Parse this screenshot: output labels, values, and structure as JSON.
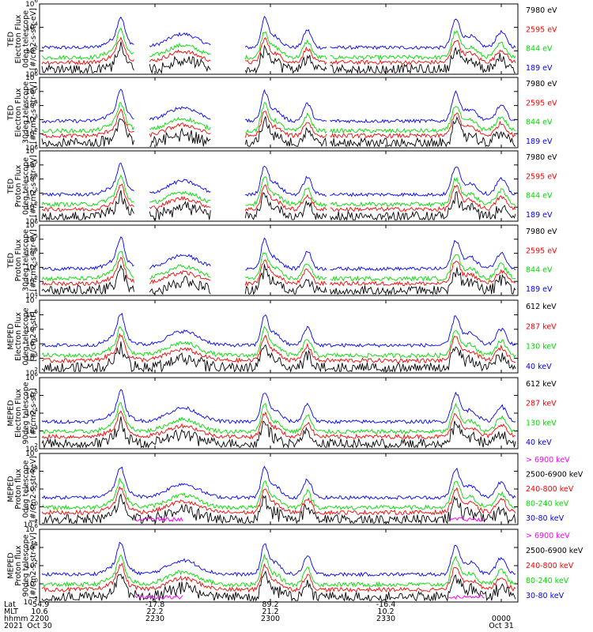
{
  "colors": {
    "black": "#000000",
    "blue": "#0000ff",
    "red": "#ff0000",
    "green": "#00dd00",
    "magenta": "#ff00ff"
  },
  "x_axis": {
    "row_labels": [
      "Lat",
      "MLT",
      "hhmm",
      "2021"
    ],
    "ticks": [
      {
        "time": "2200",
        "lat": "-54.9",
        "mlt": "10.6",
        "date": "Oct 30"
      },
      {
        "time": "2230",
        "lat": "-17.8",
        "mlt": "22.2",
        "date": ""
      },
      {
        "time": "2300",
        "lat": "89.2",
        "mlt": "21.2",
        "date": ""
      },
      {
        "time": "2330",
        "lat": "-16.4",
        "mlt": "10.2",
        "date": ""
      },
      {
        "time": "0000",
        "lat": "",
        "mlt": "",
        "date": "Oct 31"
      }
    ]
  },
  "chart_data": [
    {
      "type": "line",
      "scale": "log",
      "title_lines": [
        "TED",
        "Electron Flux",
        "0deg telescope",
        "[#/cm2-s-str-eV]"
      ],
      "y_ticks": [
        {
          "label": "10",
          "exp": "0"
        },
        {
          "label": "10",
          "exp": "2"
        },
        {
          "label": "10",
          "exp": "4"
        },
        {
          "label": "10",
          "exp": "6"
        }
      ],
      "ylim_exp": [
        0,
        6
      ],
      "series": [
        {
          "name": "7980 eV",
          "color": "black"
        },
        {
          "name": "2595 eV",
          "color": "red"
        },
        {
          "name": "844 eV",
          "color": "green"
        },
        {
          "name": "189 eV",
          "color": "blue"
        }
      ]
    },
    {
      "type": "line",
      "scale": "log",
      "title_lines": [
        "TED",
        "Electron Flux",
        "30deg telescope",
        "[#/cm2-s-str-eV]"
      ],
      "y_ticks": [
        {
          "label": "10",
          "exp": "1"
        },
        {
          "label": "10",
          "exp": "2"
        },
        {
          "label": "10",
          "exp": "3"
        },
        {
          "label": "10",
          "exp": "4"
        },
        {
          "label": "10",
          "exp": "5"
        },
        {
          "label": "10",
          "exp": "6"
        }
      ],
      "ylim_exp": [
        1,
        6
      ],
      "series": [
        {
          "name": "7980 eV",
          "color": "black"
        },
        {
          "name": "2595 eV",
          "color": "red"
        },
        {
          "name": "844 eV",
          "color": "green"
        },
        {
          "name": "189 eV",
          "color": "blue"
        }
      ]
    },
    {
      "type": "line",
      "scale": "log",
      "title_lines": [
        "TED",
        "Proton Flux",
        "0deg telescope",
        "[#/cm2-s-str-eV]"
      ],
      "y_ticks": [
        {
          "label": "10",
          "exp": "1"
        },
        {
          "label": "10",
          "exp": "2"
        },
        {
          "label": "10",
          "exp": "3"
        },
        {
          "label": "10",
          "exp": "4"
        },
        {
          "label": "10",
          "exp": "5"
        },
        {
          "label": "10",
          "exp": "6"
        }
      ],
      "ylim_exp": [
        1,
        6
      ],
      "series": [
        {
          "name": "7980 eV",
          "color": "black"
        },
        {
          "name": "2595 eV",
          "color": "red"
        },
        {
          "name": "844 eV",
          "color": "green"
        },
        {
          "name": "189 eV",
          "color": "blue"
        }
      ]
    },
    {
      "type": "line",
      "scale": "log",
      "title_lines": [
        "TED",
        "Proton Flux",
        "30deg telescope",
        "[#/cm2-s-str-eV]"
      ],
      "y_ticks": [
        {
          "label": "10",
          "exp": "1"
        },
        {
          "label": "10",
          "exp": "2"
        },
        {
          "label": "10",
          "exp": "3"
        },
        {
          "label": "10",
          "exp": "4"
        },
        {
          "label": "10",
          "exp": "5"
        },
        {
          "label": "10",
          "exp": "6"
        }
      ],
      "ylim_exp": [
        1,
        6
      ],
      "series": [
        {
          "name": "7980 eV",
          "color": "black"
        },
        {
          "name": "2595 eV",
          "color": "red"
        },
        {
          "name": "844 eV",
          "color": "green"
        },
        {
          "name": "189 eV",
          "color": "blue"
        }
      ]
    },
    {
      "type": "line",
      "scale": "log",
      "title_lines": [
        "MEPED",
        "Electron Flux",
        "0deg telescope",
        "[#/cm2-s-str]"
      ],
      "y_ticks": [
        {
          "label": "10",
          "exp": "2"
        },
        {
          "label": "10",
          "exp": "3"
        },
        {
          "label": "10",
          "exp": "4"
        },
        {
          "label": "10",
          "exp": "5"
        },
        {
          "label": "10",
          "exp": "6"
        },
        {
          "label": "10",
          "exp": "7"
        }
      ],
      "ylim_exp": [
        2,
        7
      ],
      "series": [
        {
          "name": "612 keV",
          "color": "black"
        },
        {
          "name": "287 keV",
          "color": "red"
        },
        {
          "name": "130 keV",
          "color": "green"
        },
        {
          "name": "40 keV",
          "color": "blue"
        }
      ]
    },
    {
      "type": "line",
      "scale": "log",
      "title_lines": [
        "MEPED",
        "Electron Flux",
        "90deg telescope",
        "[#/cm2-s-str]"
      ],
      "y_ticks": [
        {
          "label": "10",
          "exp": "2"
        },
        {
          "label": "10",
          "exp": "3"
        },
        {
          "label": "10",
          "exp": "4"
        },
        {
          "label": "10",
          "exp": "5"
        },
        {
          "label": "10",
          "exp": "6"
        }
      ],
      "ylim_exp": [
        2,
        6
      ],
      "series": [
        {
          "name": "612 keV",
          "color": "black"
        },
        {
          "name": "287 keV",
          "color": "red"
        },
        {
          "name": "130 keV",
          "color": "green"
        },
        {
          "name": "40 keV",
          "color": "blue"
        }
      ]
    },
    {
      "type": "line",
      "scale": "log",
      "title_lines": [
        "MEPED",
        "Proton flux",
        "0deg telescope",
        "[#/cm2-s-str-keV]"
      ],
      "y_ticks": [
        {
          "label": "10",
          "exp": "-2"
        },
        {
          "label": "10",
          "exp": "0"
        },
        {
          "label": "10",
          "exp": "2"
        },
        {
          "label": "10",
          "exp": "4"
        },
        {
          "label": "10",
          "exp": "6"
        }
      ],
      "ylim_exp": [
        -2,
        6
      ],
      "series": [
        {
          "name": "> 6900 keV",
          "color": "magenta"
        },
        {
          "name": "2500-6900 keV",
          "color": "black"
        },
        {
          "name": "240-800 keV",
          "color": "red"
        },
        {
          "name": "80-240 keV",
          "color": "green"
        },
        {
          "name": "30-80 keV",
          "color": "blue"
        }
      ]
    },
    {
      "type": "line",
      "scale": "log",
      "title_lines": [
        "MEPED",
        "Proton flux",
        "90deg telescope",
        "[#/cm2-s-str-keV]"
      ],
      "y_ticks": [
        {
          "label": "10",
          "exp": "-2"
        },
        {
          "label": "10",
          "exp": "0"
        },
        {
          "label": "10",
          "exp": "2"
        },
        {
          "label": "10",
          "exp": "4"
        },
        {
          "label": "10",
          "exp": "6"
        }
      ],
      "ylim_exp": [
        -2,
        6
      ],
      "series": [
        {
          "name": "> 6900 keV",
          "color": "magenta"
        },
        {
          "name": "2500-6900 keV",
          "color": "black"
        },
        {
          "name": "240-800 keV",
          "color": "red"
        },
        {
          "name": "80-240 keV",
          "color": "green"
        },
        {
          "name": "30-80 keV",
          "color": "blue"
        }
      ]
    }
  ]
}
